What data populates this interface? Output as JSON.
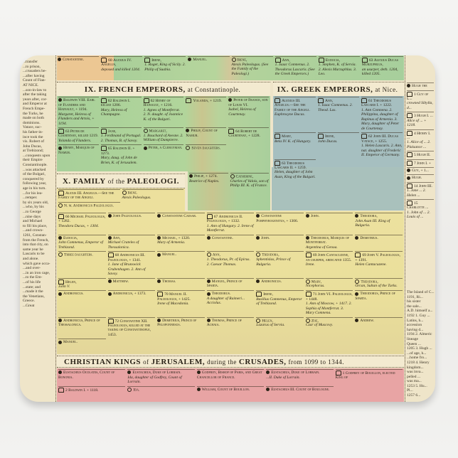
{
  "colors": {
    "orange": "#ecc793",
    "green": "#a9cf9a",
    "blue": "#a6bfc0",
    "yellow": "#ece09d",
    "pink": "#e8a4a4",
    "paper": "#efe5c9"
  },
  "left_column": {
    "lines": [
      "...transfer",
      "...to prison,",
      "...crusaders be-",
      "...after having",
      "Count of Flan-",
      "",
      "AT NICE.",
      "...son-in-law to",
      "after the taking",
      "years after, cor-",
      "and Emperor at",
      "French Empe-",
      "the Turks, he",
      "made on both",
      "dominions.",
      "Vatace, suc-",
      "his father-in-",
      "ince took the",
      "vis. Robert of",
      "John Ducas,",
      "at Trebizond;",
      "...conquests upon",
      "their Empire",
      "Constantinople.",
      "...was attacked",
      "of the Bulgari,",
      "conquered by",
      "following year,",
      "age in his turn.",
      "...for his lea-",
      "...temper.",
      "by six years old,",
      "...who, by his",
      "...to George",
      "...nine days",
      "and Michael",
      "to fill his place,",
      "...and crown-",
      "1261, Constan-",
      "from the French,",
      "into that city, on",
      "same year he",
      "Lascaris to be",
      "and alone.",
      "which gave occa-",
      "",
      "...and over-",
      "...in an iron cage,",
      "...to the Em-",
      "...of his life",
      "...state; and",
      "...made it the",
      "the Venetians,",
      "Greece.",
      "...Great"
    ]
  },
  "top_strip": {
    "entries": [
      {
        "icon": "dot-icon",
        "name": "Constantine."
      },
      {
        "icon": "crown-icon",
        "num": "60",
        "name": "Alexius IV. Angelus,",
        "sub": "deposed and killed 1204."
      },
      {
        "icon": "crown-icon",
        "name": "Irene,",
        "sub": "1. Roger, King of Sicily. 2. Philip of Suabia."
      },
      {
        "icon": "dot-icon",
        "name": "Manuel."
      },
      {
        "icon": "ring-icon",
        "name": "Irene,",
        "sub": "Alexis Paleologus. (See the Family of the Paleologi.)"
      },
      {
        "icon": "crown-icon",
        "name": "Ann,",
        "sub": "1. Isaac Comnenus. 2. Theodorus Lascaris. (See the Greek Emperors.)"
      },
      {
        "icon": "crown-icon",
        "name": "Eudocia,",
        "sub": "1. Stephen, K. of Servia. 2. Alexis Murzuphlus. 3. Leo."
      },
      {
        "icon": "crown-icon",
        "num": "63",
        "name": "Alexius Ducas Murzuphlus,",
        "sub": "an usurper, deth. 1204, killed 1205."
      }
    ]
  },
  "french": {
    "title_bold": "IX. FRENCH EMPERORS,",
    "title_rest": "at Constantinople.",
    "entries": [
      {
        "icon": "dot-icon",
        "name": "Baldwin VIII. Earl of Flanders and Hainault, + 1194.",
        "sub": "Margaret, Heiress of Flanders and Artois, + 1194."
      },
      {
        "icon": "crown-icon",
        "num": "62",
        "name": "Baldwin I. killed 1206.",
        "sub": "Mary, Heiress of Champagne."
      },
      {
        "icon": "crown-icon",
        "num": "62",
        "name": "Henry of Hainault, + 1216.",
        "sub": "1. Agnes of Montferrat. 2. N. daught. of Joannice K. of the Bulgari."
      },
      {
        "icon": "crown-icon",
        "name": "Yolanda, + 1219."
      },
      {
        "icon": "dot-icon",
        "name": "Peter of France, son of Louis VI.",
        "sub": "Isabel, Heiress of Courtenay."
      },
      {
        "icon": "crown-icon",
        "num": "63",
        "name": "Peter de Courtenay, killed 1219.",
        "sub": "Yolanda of Flanders."
      },
      {
        "icon": "crown-icon",
        "name": "Jane,",
        "sub": "1. Ferdinand of Portugal. 2. Thomas, B. of Savoy."
      },
      {
        "icon": "ring-icon",
        "name": "Margaret,",
        "sub": "1. Bouchard of Avesne. 2. William of Dampierre."
      },
      {
        "icon": "dot-icon",
        "name": "Philip, Count of Namur."
      },
      {
        "icon": "crown-icon",
        "num": "64",
        "name": "Robert de Courtenay, + 1228."
      },
      {
        "icon": "dot-icon",
        "name": "Henry, Marquis of Namur."
      },
      {
        "icon": "crown-icon",
        "num": "65",
        "name": "Baldwin II. + 1273.",
        "sub": "Mary, daug. of John de Brien, K. of Jerusalem."
      },
      {
        "icon": "dot-icon",
        "name": "Peter, a Clergyman."
      },
      {
        "icon": "ring-icon",
        "name": "Seven daughters."
      },
      {
        "icon": "dot-icon",
        "name": "Philip, + 1274.",
        "sub": "Beatrice of Naples."
      },
      {
        "icon": "ring-icon",
        "name": "Catherine,",
        "sub": "Charles of Valois, son of Philip III. K. of France."
      }
    ]
  },
  "greek": {
    "title_bold": "IX. GREEK EMPERORS,",
    "title_rest": "at Nice.",
    "entries": [
      {
        "icon": "crown-icon",
        "name": "Alexius III. Angelus.—See the Family of the Angeli.",
        "sub": "Euphrosyne Ducas."
      },
      {
        "icon": "crown-icon",
        "name": "Ann,",
        "sub": "1. Isaac Comnenus. 2. Theod. Las."
      },
      {
        "icon": "crown-icon",
        "num": "61",
        "name": "Theodorus Lascaris I. + 1222.",
        "sub": "1. Ann Comnena. 2. Philippina, daughter of Rupinus of Armenia. 3. Mary, daughter of Peter de Courtenay."
      },
      {
        "icon": "crown-icon",
        "name": "Mary,",
        "sub": "Bela IV. K. of Hungary."
      },
      {
        "icon": "crown-icon",
        "name": "Irene,",
        "sub": "John Ducas."
      },
      {
        "icon": "crown-icon",
        "num": "62",
        "name": "John III. Ducas Vatace, + 1255.",
        "sub": "1. Helen Lascaris. 2. Ann, nat. daughter of Frederic II. Emperor of Germany."
      },
      {
        "icon": "crown-icon",
        "num": "63",
        "name": "Theodorus Lascaris II. + 1259.",
        "sub": "Helen, daughter of John Asan, King of the Bulgari."
      }
    ]
  },
  "paleologi": {
    "title_bold": "X. FAMILY",
    "title_of": "of the",
    "title_end": "PALEOLOGI.",
    "entries": [
      {
        "icon": "crown-icon",
        "name": "Alexis III. Angelus.—See the Family of the Angeli."
      },
      {
        "icon": "ring-icon",
        "name": "Irene.",
        "sub": "Alexis Paleologus."
      },
      {
        "icon": "ring-icon",
        "name": "N. m. Andronicus Paleologus."
      },
      {
        "icon": "crown-icon",
        "num": "66",
        "name": "Michael Paleologus, + 1282.",
        "sub": "Theodora Ducas, + 1304."
      },
      {
        "icon": "dot-icon",
        "name": "John Paleologus."
      },
      {
        "icon": "dot-icon",
        "name": "Constantine Caesar."
      },
      {
        "icon": "crown-icon",
        "num": "67",
        "name": "Andronicus II. Paleologus, + 1332.",
        "sub": "1. Ann of Hungary. 2. Irene of Montferrat."
      },
      {
        "icon": "dot-icon",
        "name": "Constantine Porphyrogenitus, + 1306."
      },
      {
        "icon": "dot-icon",
        "name": "John."
      },
      {
        "icon": "dot-icon",
        "name": "Theodora,",
        "sub": "John Asan III. King of Bulgaria."
      },
      {
        "icon": "dot-icon",
        "name": "Eudocia,",
        "sub": "John Comnenus, Emperor of Trebizond."
      },
      {
        "icon": "dot-icon",
        "name": "Ann,",
        "sub": "Michael Crateles of Thessalonica."
      },
      {
        "icon": "dot-icon",
        "name": "Michael, + 1320.",
        "sub": "Mary of Armenia."
      },
      {
        "icon": "dot-icon",
        "name": "Constantine."
      },
      {
        "icon": "dot-icon",
        "name": "John."
      },
      {
        "icon": "dot-icon",
        "name": "Theodorus, Marquis of Montferrat.",
        "sub": "Argentina of Genoa."
      },
      {
        "icon": "dot-icon",
        "name": "Demetrius."
      },
      {
        "icon": "ring-icon",
        "name": "Three daughters."
      },
      {
        "icon": "crown-icon",
        "num": "68",
        "name": "Andronicus III. Paleologus, + 1341.",
        "sub": "1. Jane of Brunswick Grubenhagen. 2. Ann of Savoy."
      },
      {
        "icon": "dot-icon",
        "name": "Manuel."
      },
      {
        "icon": "ring-icon",
        "name": "Ann,",
        "sub": "1. Theodorus, Pr. of Epirus. 2. Caesar Thomas."
      },
      {
        "icon": "ring-icon",
        "name": "Theodora,",
        "sub": "Sphentislas, Prince of Bulgaria."
      },
      {
        "icon": "crown-icon",
        "num": "69",
        "name": "John Cantacuzene, an usurper, abdicated 1355.",
        "sub": "Irene."
      },
      {
        "icon": "crown-icon",
        "num": "69",
        "name": "John V. Paleologus, + 1391.",
        "sub": "Helen Cantacuzene."
      },
      {
        "icon": "crown-icon",
        "name": "Helen,",
        "sub": "John V."
      },
      {
        "icon": "dot-icon",
        "name": "Matthew."
      },
      {
        "icon": "dot-icon",
        "name": "Thomas."
      },
      {
        "icon": "dot-icon",
        "name": "Manuel, Prince of Sparta."
      },
      {
        "icon": "dot-icon",
        "name": "Andronicus."
      },
      {
        "icon": "ring-icon",
        "name": "Mary,",
        "sub": "Nicephorus."
      },
      {
        "icon": "ring-icon",
        "name": "Theodora,",
        "sub": "Orcan, Sultan of the Turks."
      },
      {
        "icon": "dot-icon",
        "name": "Andronicus."
      },
      {
        "icon": "dot-icon",
        "name": "Andronicus, + 1373."
      },
      {
        "icon": "crown-icon",
        "num": "70",
        "name": "Manuel II. Paleologus, + 1425.",
        "sub": "Irene of Macedonia."
      },
      {
        "icon": "dot-icon",
        "name": "Theodorus.",
        "sub": "A daughter of Raimeri... Acciolus."
      },
      {
        "icon": "crown-icon",
        "name": "Irene,",
        "sub": "Basilius Comnenus, Emperor of Trebizond."
      },
      {
        "icon": "crown-icon",
        "num": "71",
        "name": "John VI. Paleologus, + 1448.",
        "sub": "1. Ann of Moscow, + 1417. 2. Sophia of Montferrat. 3. Mary Comnena."
      },
      {
        "icon": "dot-icon",
        "name": "Theodorus, Prince of Sparta."
      },
      {
        "icon": "dot-icon",
        "name": "Andronicus, Prince of Thessalonica."
      },
      {
        "icon": "crown-icon",
        "num": "72",
        "name": "Constantine XII. Paleologus, killed at the taking of Constantinople, 1453."
      },
      {
        "icon": "dot-icon",
        "name": "Demetrius, Prince of Peloponnesus."
      },
      {
        "icon": "dot-icon",
        "name": "Thomas, Prince of Achaia."
      },
      {
        "icon": "ring-icon",
        "name": "Helen,",
        "sub": "Lazarus of Servia."
      },
      {
        "icon": "ring-icon",
        "name": "Zoe,",
        "sub": "Czar of Muscovy."
      },
      {
        "icon": "dot-icon",
        "name": "Andrew."
      },
      {
        "icon": "dot-icon",
        "name": "Manuel."
      }
    ]
  },
  "jerusalem": {
    "title_bold1": "CHRISTIAN KINGS",
    "title_of": "of",
    "title_bold2": "JERUSALEM,",
    "title_during": "during the",
    "title_bold3": "CRUSADES,",
    "title_range": "from 1099 to 1344.",
    "entries": [
      {
        "icon": "dot-icon",
        "name": "Eustachius Ocolates, Count of Bononia."
      },
      {
        "icon": "dot-icon",
        "name": "Eustachius, Duke of Lorrain.",
        "sub": "Ida, daughter of Godfrey, Count of Lorrain."
      },
      {
        "icon": "dot-icon",
        "name": "Godfrey, Bishop of Paris, and Great Chancellor of France."
      },
      {
        "icon": "dot-icon",
        "name": "Eustachius, Duke of Lorrain.",
        "sub": "...II. Duke of Lorrain."
      },
      {
        "icon": "crown-icon",
        "num": "1",
        "name": "Godfrey of Bouillon, elected King of"
      },
      {
        "icon": "crown-icon",
        "num": "2",
        "name": "Baldwin I. + 1118."
      },
      {
        "icon": "ring-icon",
        "name": "Ida."
      },
      {
        "icon": "dot-icon",
        "name": "William, Count of Bouillon."
      },
      {
        "icon": "dot-icon",
        "name": "Eustachius III. Count of Boulogne."
      }
    ]
  },
  "right_column": {
    "entries": [
      {
        "icon": "dot-icon",
        "name": "Hugh the"
      },
      {
        "icon": "crown-icon",
        "num": "1",
        "name": "Guy of L...",
        "sub": "crowned Sibylla, d..."
      },
      {
        "icon": "crown-icon",
        "num": "3",
        "name": "Hugh I. ...",
        "sub": "Alice of ... + 1218."
      },
      {
        "icon": "crown-icon",
        "num": "4",
        "name": "Henry I. ...",
        "sub": "1. Alice of ... 2. Plaisance ..."
      },
      {
        "icon": "crown-icon",
        "num": "5",
        "name": "Hugh II."
      },
      {
        "icon": "crown-icon",
        "num": "7",
        "name": "John I. +"
      },
      {
        "icon": "dot-icon",
        "name": "Guy, + 1..."
      },
      {
        "icon": "dot-icon",
        "name": "Hugh."
      },
      {
        "icon": "crown-icon",
        "num": "14",
        "name": "John III.",
        "sub": "1. Jane ... 2. Helen ..."
      },
      {
        "icon": "crown-icon",
        "num": "15",
        "name": "Charlotte ...",
        "sub": "1. John of ... 2. Louis of ..."
      }
    ],
    "notes": [
      "The Island of C...",
      "1191, Ri...",
      "his sister",
      "the sale...",
      "A.D. himself a...",
      "1192 1. Guy ...",
      "Latins, h...",
      "accession",
      "having d...",
      "1194 2. Almeric",
      "lineage",
      "Queen ...",
      "1205 3. Hugh ...",
      "...of age, h...",
      "...home fro...",
      "1218 4. Henry",
      "kingdom...",
      "was inva...",
      "pelled ...",
      "was ma...",
      "1253 5. Hu...",
      "Pl...",
      "1257 6..."
    ]
  }
}
